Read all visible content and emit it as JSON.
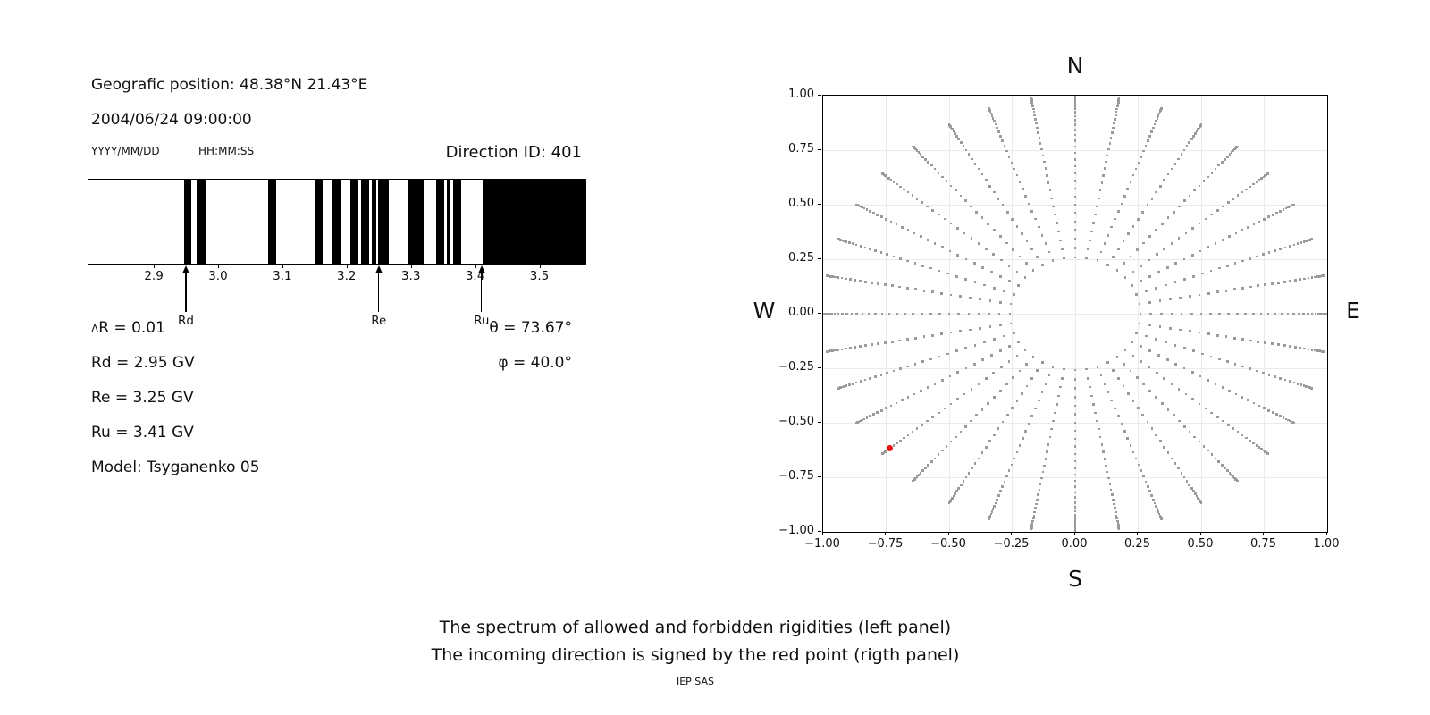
{
  "spectrum_panel": {
    "geo_position": "Geografic position: 48.38°N 21.43°E",
    "datetime": "2004/06/24 09:00:00",
    "date_format": "YYYY/MM/DD",
    "time_format": "HH:MM:SS",
    "direction_id": "Direction ID: 401",
    "values": {
      "delta_symbol": "Δ",
      "delta_r": "R = 0.01",
      "rd": "Rd = 2.95 GV",
      "re": "Re = 3.25 GV",
      "ru": "Ru = 3.41 GV",
      "model": "Model: Tsyganenko 05",
      "theta": "θ = 73.67°",
      "phi": "φ = 40.0°"
    }
  },
  "direction_panel": {
    "compass": {
      "top": "N",
      "bottom": "S",
      "left": "W",
      "right": "E"
    }
  },
  "caption": {
    "line1": "The spectrum of allowed and forbidden rigidities (left panel)",
    "line2": "The incoming direction is signed by the red point (rigth panel)",
    "footer": "IEP SAS"
  },
  "chart_data": [
    {
      "type": "bar",
      "title": "Rigidity spectrum: allowed (black) and forbidden (white) bands",
      "xlim": [
        2.797,
        3.573
      ],
      "xticks": [
        2.9,
        3.0,
        3.1,
        3.2,
        3.3,
        3.4,
        3.5
      ],
      "xtick_labels": [
        "2.9",
        "3.0",
        "3.1",
        "3.2",
        "3.3",
        "3.4",
        "3.5"
      ],
      "bar_color": "#000000",
      "allowed_bands_gv": [
        [
          2.946,
          2.958
        ],
        [
          2.966,
          2.98
        ],
        [
          3.078,
          3.09
        ],
        [
          3.15,
          3.163
        ],
        [
          3.178,
          3.191
        ],
        [
          3.206,
          3.219
        ],
        [
          3.223,
          3.235
        ],
        [
          3.24,
          3.246
        ],
        [
          3.249,
          3.266
        ],
        [
          3.296,
          3.321
        ],
        [
          3.34,
          3.352
        ],
        [
          3.357,
          3.362
        ],
        [
          3.366,
          3.379
        ],
        [
          3.412,
          3.573
        ]
      ],
      "markers": [
        {
          "label": "Rd",
          "value": 2.95
        },
        {
          "label": "Re",
          "value": 3.25
        },
        {
          "label": "Ru",
          "value": 3.41
        }
      ]
    },
    {
      "type": "scatter",
      "title": "Incoming direction map",
      "xlim": [
        -1.0,
        1.0
      ],
      "ylim": [
        -1.0,
        1.0
      ],
      "xticks": [
        -1.0,
        -0.75,
        -0.5,
        -0.25,
        0.0,
        0.25,
        0.5,
        0.75,
        1.0
      ],
      "yticks": [
        1.0,
        0.75,
        0.5,
        0.25,
        0.0,
        -0.25,
        -0.5,
        -0.75,
        -1.0
      ],
      "xtick_labels": [
        "−1.00",
        "−0.75",
        "−0.50",
        "−0.25",
        "0.00",
        "0.25",
        "0.50",
        "0.75",
        "1.00"
      ],
      "ytick_labels": [
        "1.00",
        "0.75",
        "0.50",
        "0.25",
        "0.00",
        "−0.25",
        "−0.50",
        "−0.75",
        "−1.00"
      ],
      "grid": true,
      "grid_color": "#ebebeb",
      "dot_color": "#9b9b9b",
      "red_color": "#ee1111",
      "spokes": {
        "azimuth_start_deg": 0,
        "azimuth_step_deg": 10,
        "azimuth_count": 36,
        "zenith_start_deg": 15,
        "zenith_end_deg": 90,
        "zenith_step_deg": 2.5,
        "radius_rule": "r = sin(zenith)"
      },
      "red_point": {
        "x": -0.735,
        "y": -0.617,
        "theta_deg": 73.67,
        "phi_deg": 40.0
      }
    }
  ]
}
